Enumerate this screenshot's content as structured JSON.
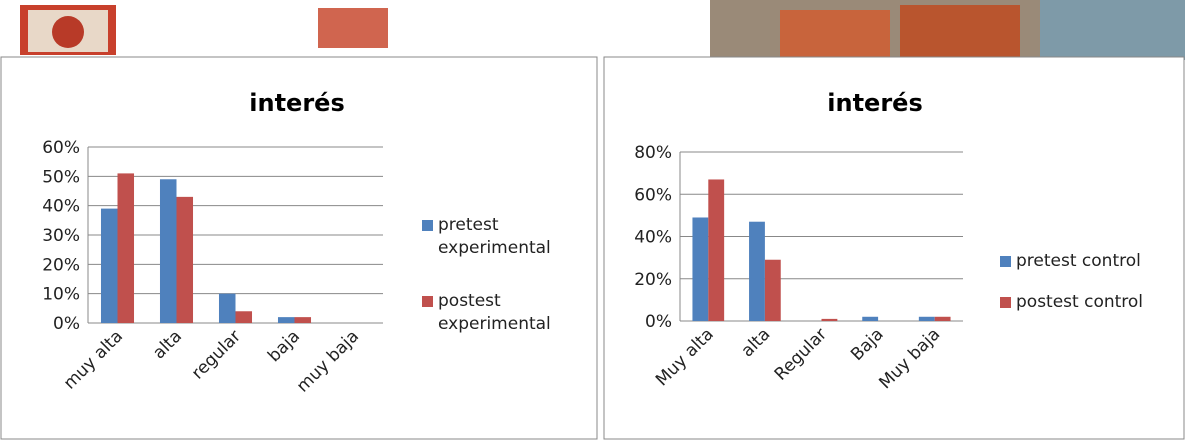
{
  "chart_data": [
    {
      "type": "bar",
      "title": "interés",
      "categories": [
        "muy alta",
        "alta",
        "regular",
        "baja",
        "muy baja"
      ],
      "series": [
        {
          "name": "pretest experimental",
          "color": "#4f81bd",
          "values": [
            39,
            49,
            10,
            2,
            0
          ]
        },
        {
          "name": "postest experimental",
          "color": "#c0504d",
          "values": [
            51,
            43,
            4,
            2,
            0
          ]
        }
      ],
      "ylim": [
        0,
        60
      ],
      "yticks": [
        {
          "value": 0,
          "label": "0%"
        },
        {
          "value": 10,
          "label": "10%"
        },
        {
          "value": 20,
          "label": "20%"
        },
        {
          "value": 30,
          "label": "30%"
        },
        {
          "value": 40,
          "label": "40%"
        },
        {
          "value": 50,
          "label": "50%"
        },
        {
          "value": 60,
          "label": "60%"
        }
      ],
      "grid": true,
      "legend": "right"
    },
    {
      "type": "bar",
      "title": "interés",
      "categories": [
        "Muy alta",
        "alta",
        "Regular",
        "Baja",
        "Muy baja"
      ],
      "series": [
        {
          "name": "pretest control",
          "color": "#4f81bd",
          "values": [
            49,
            47,
            0,
            2,
            2
          ]
        },
        {
          "name": "postest control",
          "color": "#c0504d",
          "values": [
            67,
            29,
            1,
            0,
            2
          ]
        }
      ],
      "ylim": [
        0,
        80
      ],
      "yticks": [
        {
          "value": 0,
          "label": "0%"
        },
        {
          "value": 20,
          "label": "20%"
        },
        {
          "value": 40,
          "label": "40%"
        },
        {
          "value": 60,
          "label": "60%"
        },
        {
          "value": 80,
          "label": "80%"
        }
      ],
      "grid": true,
      "legend": "right"
    }
  ]
}
